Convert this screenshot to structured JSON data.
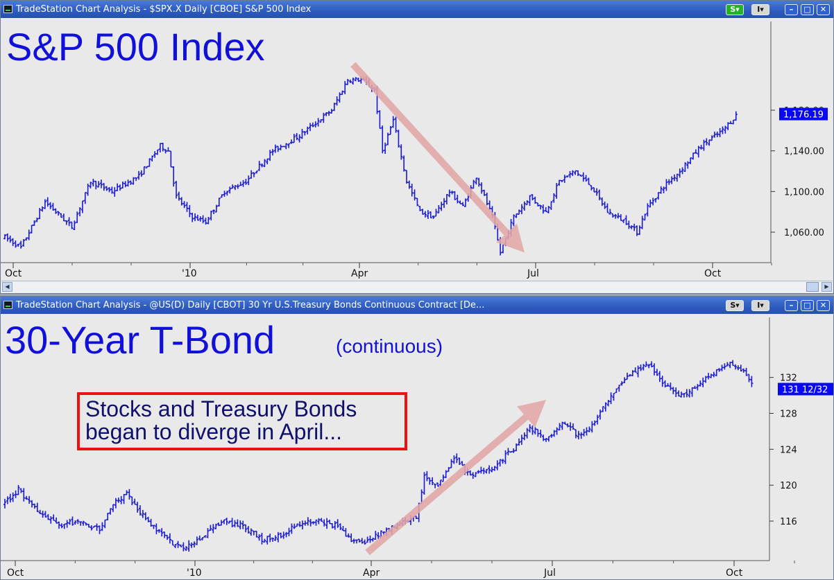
{
  "colors": {
    "bars": "#1a1ad0",
    "arrow": "#e2a6a6",
    "price_tag": "#0a0af0",
    "annotation_border": "#ee1111",
    "annotation_text": "#10106a"
  },
  "windows": [
    {
      "title": "TradeStation Chart Analysis - $SPX.X Daily [CBOE] S&P 500 Index",
      "s_button": "S",
      "i_button": "I",
      "controls": [
        "–",
        "□",
        "✕"
      ],
      "heading": "S&P 500 Index",
      "last_price": "1,176.19"
    },
    {
      "title": "TradeStation Chart Analysis - @US(D) Daily [CBOT] 30 Yr U.S.Treasury Bonds Continuous Contract [De...",
      "s_button": "S",
      "i_button": "I",
      "controls": [
        "–",
        "□",
        "✕"
      ],
      "heading": "30-Year T-Bond",
      "subheading": "(continuous)",
      "last_price": "131 12/32",
      "annotation": [
        "Stocks and Treasury Bonds",
        "began to diverge in April..."
      ]
    }
  ],
  "chart_data": [
    {
      "type": "ohlc",
      "title": "S&P 500 Index",
      "x_ticks": [
        "Oct",
        "'10",
        "Apr",
        "Jul",
        "Oct"
      ],
      "y_ticks": [
        "1,060.00",
        "1,100.00",
        "1,140.00",
        "1,180.00"
      ],
      "ylim": [
        1030,
        1225
      ],
      "last_price": "1,176.19",
      "anchors": [
        [
          0,
          1055
        ],
        [
          6,
          1045
        ],
        [
          15,
          1090
        ],
        [
          25,
          1065
        ],
        [
          32,
          1110
        ],
        [
          40,
          1100
        ],
        [
          50,
          1115
        ],
        [
          58,
          1145
        ],
        [
          61,
          1140
        ],
        [
          64,
          1095
        ],
        [
          70,
          1075
        ],
        [
          75,
          1070
        ],
        [
          82,
          1100
        ],
        [
          90,
          1110
        ],
        [
          100,
          1140
        ],
        [
          110,
          1155
        ],
        [
          122,
          1180
        ],
        [
          128,
          1210
        ],
        [
          133,
          1210
        ],
        [
          138,
          1200
        ],
        [
          141,
          1140
        ],
        [
          145,
          1170
        ],
        [
          150,
          1110
        ],
        [
          155,
          1080
        ],
        [
          160,
          1075
        ],
        [
          166,
          1100
        ],
        [
          171,
          1085
        ],
        [
          176,
          1115
        ],
        [
          182,
          1075
        ],
        [
          185,
          1040
        ],
        [
          190,
          1075
        ],
        [
          196,
          1095
        ],
        [
          202,
          1080
        ],
        [
          207,
          1110
        ],
        [
          213,
          1120
        ],
        [
          219,
          1105
        ],
        [
          225,
          1080
        ],
        [
          232,
          1070
        ],
        [
          236,
          1060
        ],
        [
          240,
          1085
        ],
        [
          246,
          1105
        ],
        [
          252,
          1120
        ],
        [
          260,
          1145
        ],
        [
          268,
          1160
        ],
        [
          273,
          1175
        ]
      ],
      "trend_arrow": {
        "from": [
          130,
          1225
        ],
        "to": [
          194,
          1040
        ]
      }
    },
    {
      "type": "ohlc",
      "title": "30-Year T-Bond (continuous)",
      "x_ticks": [
        "Oct",
        "'10",
        "Apr",
        "Jul",
        "Oct"
      ],
      "y_ticks": [
        "116",
        "120",
        "124",
        "128",
        "132"
      ],
      "ylim": [
        111.6,
        135.6
      ],
      "last_price": "131 12/32",
      "anchors": [
        [
          0,
          118
        ],
        [
          5,
          119.5
        ],
        [
          12,
          117
        ],
        [
          20,
          115.5
        ],
        [
          27,
          116
        ],
        [
          35,
          115
        ],
        [
          40,
          118
        ],
        [
          45,
          119
        ],
        [
          50,
          117
        ],
        [
          56,
          115
        ],
        [
          60,
          114
        ],
        [
          65,
          113
        ],
        [
          72,
          114
        ],
        [
          80,
          116
        ],
        [
          87,
          115.5
        ],
        [
          95,
          114
        ],
        [
          102,
          114.5
        ],
        [
          108,
          115.5
        ],
        [
          115,
          116
        ],
        [
          122,
          115.5
        ],
        [
          128,
          114
        ],
        [
          132,
          113.5
        ],
        [
          138,
          114.5
        ],
        [
          145,
          115.5
        ],
        [
          152,
          116.5
        ],
        [
          155,
          121
        ],
        [
          160,
          120
        ],
        [
          166,
          123
        ],
        [
          172,
          121
        ],
        [
          180,
          122
        ],
        [
          188,
          124
        ],
        [
          194,
          126.5
        ],
        [
          200,
          125
        ],
        [
          206,
          127
        ],
        [
          212,
          125.5
        ],
        [
          218,
          127
        ],
        [
          224,
          130
        ],
        [
          232,
          132.5
        ],
        [
          238,
          133.5
        ],
        [
          244,
          131
        ],
        [
          250,
          130
        ],
        [
          256,
          131
        ],
        [
          262,
          132.5
        ],
        [
          268,
          133.5
        ],
        [
          272,
          133
        ],
        [
          276,
          131.5
        ]
      ],
      "trend_arrow": {
        "from": [
          134,
          112.5
        ],
        "to": [
          200,
          129.5
        ]
      }
    }
  ]
}
